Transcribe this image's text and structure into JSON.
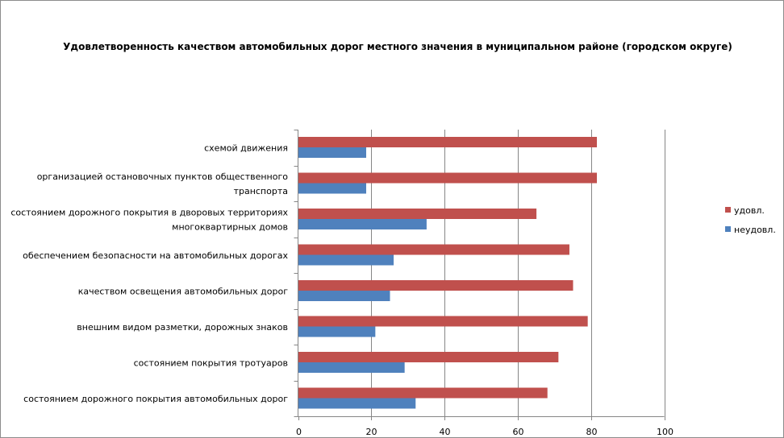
{
  "chart_data": {
    "type": "bar",
    "orientation": "horizontal",
    "title": "Удовлетворенность качеством автомобильных дорог местного значения в муниципальном районе (городском округе)",
    "categories": [
      [
        "схемой движения"
      ],
      [
        "организацией остановочных пунктов общественного",
        "транспорта"
      ],
      [
        "состоянием дорожного покрытия в дворовых территориях",
        "многоквартирных домов"
      ],
      [
        "обеспечением  безопасности на автомобильных дорогах"
      ],
      [
        "качеством освещения  автомобильных дорог"
      ],
      [
        "внешним  видом разметки, дорожных знаков"
      ],
      [
        "состоянием покрытия тротуаров"
      ],
      [
        "состоянием дорожного покрытия автомобильных дорог"
      ]
    ],
    "series": [
      {
        "name": "удовл.",
        "color": "#c0504d",
        "values": [
          81.5,
          81.5,
          65,
          74,
          75,
          79,
          71,
          68
        ]
      },
      {
        "name": "неудовл.",
        "color": "#4f81bd",
        "values": [
          18.5,
          18.5,
          35,
          26,
          25,
          21,
          29,
          32
        ]
      }
    ],
    "xlim": [
      0,
      100
    ],
    "xticks": [
      "0",
      "20",
      "40",
      "60",
      "80",
      "100"
    ],
    "grid": true,
    "legend": "right"
  }
}
